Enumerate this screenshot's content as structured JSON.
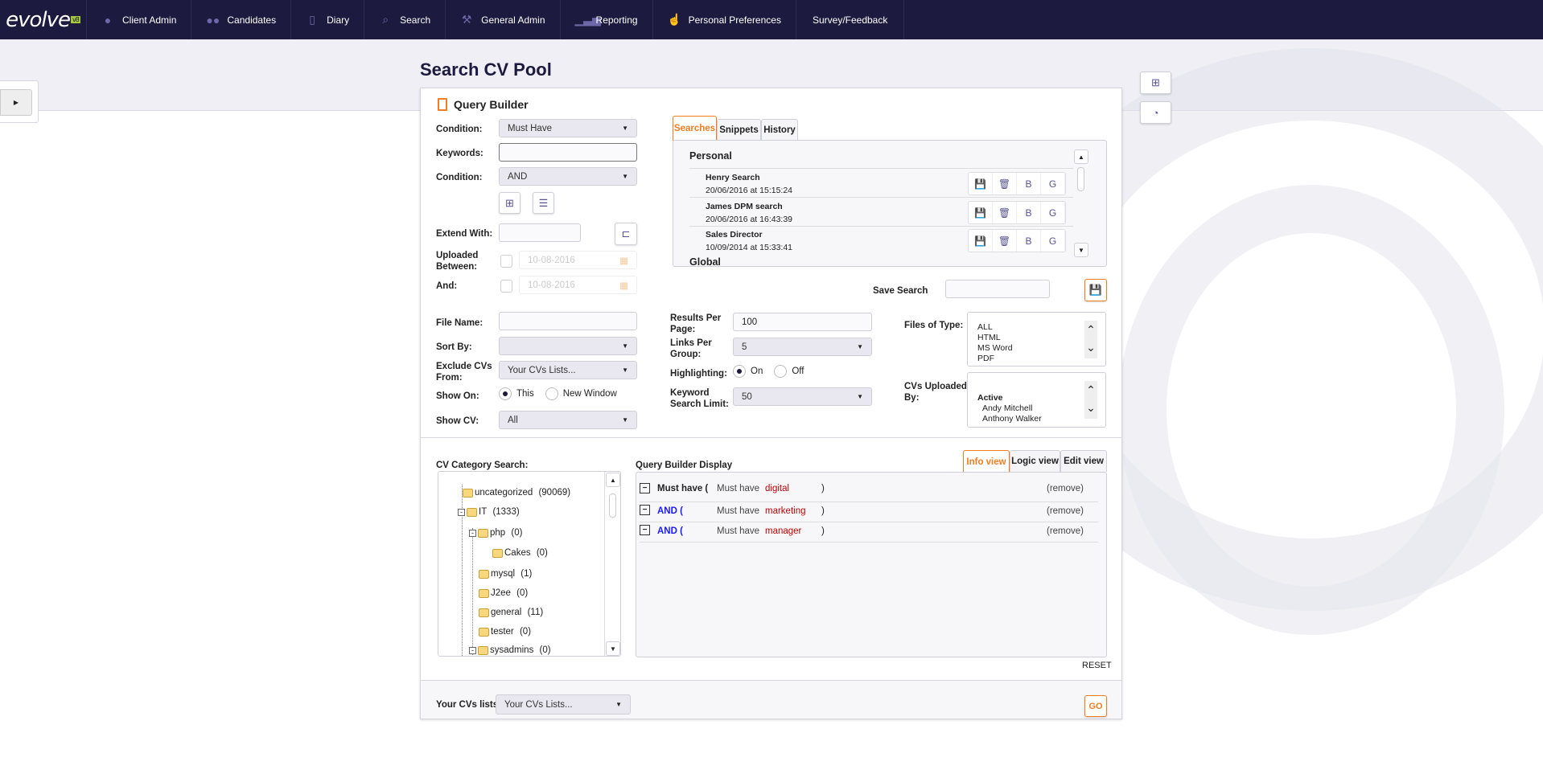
{
  "nav": {
    "logo": "evolve",
    "logo_badge": "v8",
    "items": [
      {
        "label": "Client Admin",
        "icon": "user-icon"
      },
      {
        "label": "Candidates",
        "icon": "users-icon"
      },
      {
        "label": "Diary",
        "icon": "document-icon"
      },
      {
        "label": "Search",
        "icon": "search-icon"
      },
      {
        "label": "General Admin",
        "icon": "hammer-icon"
      },
      {
        "label": "Reporting",
        "icon": "chart-icon"
      },
      {
        "label": "Personal Preferences",
        "icon": "pointer-icon"
      },
      {
        "label": "Survey/Feedback",
        "icon": ""
      }
    ]
  },
  "page": {
    "title": "Search CV Pool"
  },
  "qb": {
    "title": "Query Builder",
    "condition_label": "Condition:",
    "condition_value": "Must Have",
    "keywords_label": "Keywords:",
    "keywords_value": "",
    "condition2_label": "Condition:",
    "condition2_value": "AND",
    "extend_label": "Extend With:",
    "uploaded_label_1": "Uploaded",
    "uploaded_label_2": "Between:",
    "uploaded_from": "10-08-2016",
    "and_label": "And:",
    "uploaded_to": "10-08-2016",
    "file_name_label": "File Name:",
    "sort_by_label": "Sort By:",
    "sort_by_value": "",
    "exclude_label_1": "Exclude CVs",
    "exclude_label_2": "From:",
    "exclude_value": "Your CVs Lists...",
    "show_on_label": "Show On:",
    "show_on_options": [
      "This",
      "New Window"
    ],
    "show_cv_label": "Show CV:",
    "show_cv_value": "All",
    "results_label_1": "Results Per",
    "results_label_2": "Page:",
    "results_value": "100",
    "links_label_1": "Links Per",
    "links_label_2": "Group:",
    "links_value": "5",
    "highlight_label": "Highlighting:",
    "highlight_options": [
      "On",
      "Off"
    ],
    "kw_limit_label_1": "Keyword",
    "kw_limit_label_2": "Search Limit:",
    "kw_limit_value": "50",
    "files_type_label": "Files of Type:",
    "files_types": [
      "ALL",
      "HTML",
      "MS Word",
      "PDF"
    ],
    "uploaded_by_label_1": "CVs Uploaded",
    "uploaded_by_label_2": "By:",
    "uploaded_by_group": "Active",
    "uploaded_by_users": [
      "Andy Mitchell",
      "Anthony Walker"
    ],
    "save_search_label": "Save Search"
  },
  "searches": {
    "tabs": [
      "Searches",
      "Snippets",
      "History"
    ],
    "section": "Personal",
    "next_section": "Global",
    "items": [
      {
        "name": "Henry Search",
        "date": "20/06/2016 at 15:15:24"
      },
      {
        "name": "James DPM search",
        "date": "20/06/2016 at 16:43:39"
      },
      {
        "name": "Sales Director",
        "date": "10/09/2014 at 15:33:41"
      }
    ],
    "btn_b": "B",
    "btn_g": "G"
  },
  "category": {
    "label": "CV Category Search:",
    "tree": [
      {
        "name": "uncategorized",
        "count": "(90069)"
      },
      {
        "name": "IT",
        "count": "(1333)"
      },
      {
        "name": "php",
        "count": "(0)"
      },
      {
        "name": "Cakes",
        "count": "(0)"
      },
      {
        "name": "mysql",
        "count": "(1)"
      },
      {
        "name": "J2ee",
        "count": "(0)"
      },
      {
        "name": "general",
        "count": "(11)"
      },
      {
        "name": "tester",
        "count": "(0)"
      },
      {
        "name": "sysadmins",
        "count": "(0)"
      }
    ]
  },
  "display": {
    "label": "Query Builder Display",
    "tabs": [
      "Info view",
      "Logic view",
      "Edit view"
    ],
    "rows": [
      {
        "op": "Must have (",
        "cond": "Must have",
        "kw": "digital",
        "close": ")",
        "remove": "(remove)"
      },
      {
        "op": "AND (",
        "cond": "Must have",
        "kw": "marketing",
        "close": ")",
        "remove": "(remove)"
      },
      {
        "op": "AND (",
        "cond": "Must have",
        "kw": "manager",
        "close": ")",
        "remove": "(remove)"
      }
    ],
    "reset": "RESET"
  },
  "footer": {
    "lists_label": "Your CVs lists:",
    "lists_value": "Your CVs Lists...",
    "go": "GO"
  },
  "colors": {
    "nav": "#1c1a3e",
    "accent": "#f07d22",
    "icon": "#5a5391",
    "keyword": "#c00000",
    "and": "#1a1aff"
  }
}
